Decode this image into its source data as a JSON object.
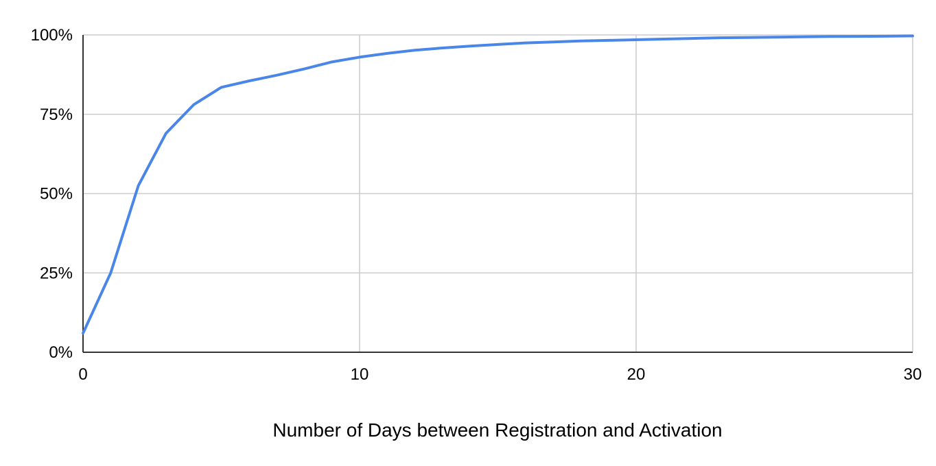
{
  "chart_data": {
    "type": "line",
    "title": "",
    "xlabel": "Number of Days between Registration and Activation",
    "ylabel": "",
    "xlim": [
      0,
      30
    ],
    "ylim": [
      0,
      100
    ],
    "x_ticks": [
      0,
      10,
      20,
      30
    ],
    "x_tick_labels": [
      "0",
      "10",
      "20",
      "30"
    ],
    "y_ticks": [
      0,
      25,
      50,
      75,
      100
    ],
    "y_tick_labels": [
      "0%",
      "25%",
      "50%",
      "75%",
      "100%"
    ],
    "grid": true,
    "legend": "none",
    "series": [
      {
        "color": "#4A86E8",
        "x": [
          0,
          1,
          2,
          3,
          4,
          5,
          6,
          7,
          8,
          9,
          10,
          11,
          12,
          13,
          14,
          15,
          16,
          17,
          18,
          19,
          20,
          21,
          22,
          23,
          24,
          25,
          26,
          27,
          28,
          29,
          30
        ],
        "y": [
          6,
          25,
          52.5,
          69,
          78,
          83.5,
          85.5,
          87.3,
          89.3,
          91.5,
          93,
          94.2,
          95.2,
          95.9,
          96.5,
          97,
          97.5,
          97.8,
          98.1,
          98.3,
          98.5,
          98.7,
          98.9,
          99.1,
          99.2,
          99.3,
          99.4,
          99.5,
          99.55,
          99.6,
          99.7
        ]
      }
    ]
  },
  "colors": {
    "grid": "#cccccc",
    "axis": "#333333",
    "line": "#4A86E8"
  }
}
